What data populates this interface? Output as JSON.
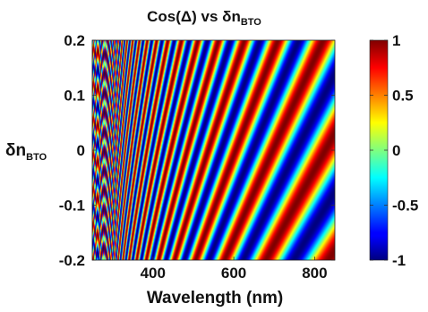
{
  "chart_data": {
    "type": "heatmap",
    "title": "Cos(Δ) vs δn",
    "title_subscript": "BTO",
    "xlabel": "Wavelength (nm)",
    "ylabel": "δn",
    "ylabel_subscript": "BTO",
    "x_range": [
      250,
      850
    ],
    "y_range": [
      -0.2,
      0.2
    ],
    "x_ticks": [
      400,
      600,
      800
    ],
    "y_ticks": [
      0.2,
      0.1,
      0,
      -0.1,
      -0.2
    ],
    "x_tick_labels": [
      "400",
      "600",
      "800"
    ],
    "y_tick_labels": [
      "0.2",
      "0.1",
      "0",
      "-0.1",
      "-0.2"
    ],
    "colorbar": {
      "range": [
        -1,
        1
      ],
      "ticks": [
        1,
        0.5,
        0,
        -0.5,
        -1
      ],
      "tick_labels": [
        "1",
        "0.5",
        "0",
        "-0.5",
        "-1"
      ],
      "colormap": "jet"
    },
    "function": "cos(Δ)",
    "values_range": [
      -1,
      1
    ],
    "grid": false
  }
}
